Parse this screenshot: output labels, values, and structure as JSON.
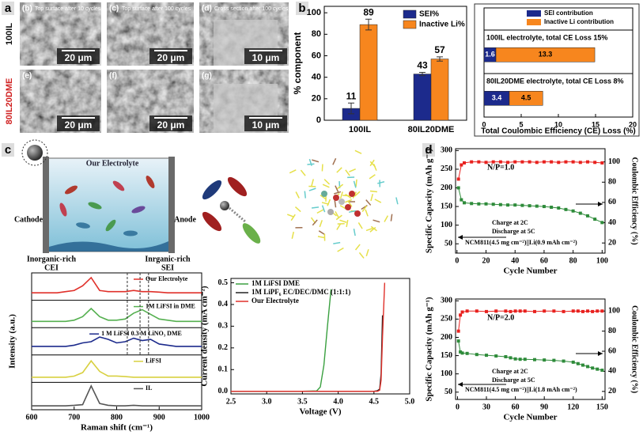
{
  "figure": {
    "panel_labels": [
      "a",
      "b",
      "c",
      "d"
    ],
    "sem": {
      "row_labels": [
        "100IL",
        "80IL20DME"
      ],
      "images": [
        {
          "id": "(b)",
          "caption": "Top surface after 10 cycles",
          "scale": "20 μm"
        },
        {
          "id": "(c)",
          "caption": "Top surface after 100 cycles",
          "scale": "20 μm"
        },
        {
          "id": "(d)",
          "caption": "Cross section after 100 cycles",
          "scale": "10 μm"
        },
        {
          "id": "(e)",
          "scale": "20 μm"
        },
        {
          "id": "(f)",
          "scale": "20 μm"
        },
        {
          "id": "(g)",
          "scale": "10 μm"
        }
      ]
    },
    "schematic": {
      "title": "Our Electrolyte",
      "cathode": "Cathode",
      "anode": "Anode",
      "cei": [
        "Inorganic-rich",
        "CEI"
      ],
      "sei": [
        "Inrganic-rich",
        "SEI"
      ]
    }
  },
  "chart_data": [
    {
      "type": "bar",
      "ylabel": "% component",
      "categories": [
        "100IL",
        "80IL20DME"
      ],
      "series": [
        {
          "name": "SEI%",
          "color": "#1c2a8c",
          "values": [
            11,
            43
          ],
          "errors": [
            5,
            1.5
          ]
        },
        {
          "name": "Inactive Li%",
          "color": "#f7861e",
          "values": [
            89,
            57
          ],
          "errors": [
            5,
            2
          ]
        }
      ],
      "ylim": [
        0,
        106
      ],
      "yticks": [
        0,
        20,
        40,
        60,
        80,
        100
      ],
      "legend": "upper right"
    },
    {
      "type": "barh",
      "stacked": true,
      "xlabel": "Total Coulombic Efficiency (CE) Loss (%)",
      "categories": [
        "100IL electrolyte, total CE Loss 15%",
        "80IL20DME electrolyte, total CE Loss 8%"
      ],
      "series": [
        {
          "name": "SEI contribution",
          "color": "#1c2a8c",
          "values": [
            1.6,
            3.4
          ]
        },
        {
          "name": "Inactive Li contribution",
          "color": "#f7861e",
          "values": [
            13.3,
            4.5
          ]
        }
      ],
      "xlim": [
        0,
        20
      ],
      "xticks": [
        0,
        5,
        10,
        15,
        20
      ],
      "legend": "upper center"
    },
    {
      "type": "spectra",
      "xlabel": "Raman shift (cm⁻¹)",
      "ylabel": "Intensity (a.u.)",
      "x": [
        600,
        620,
        640,
        660,
        680,
        700,
        720,
        740,
        760,
        780,
        800,
        820,
        840,
        860,
        880,
        900,
        920,
        940,
        960,
        980,
        1000
      ],
      "series": [
        {
          "name": "Our Electrolyte",
          "color": "#e0302a",
          "values": [
            0.25,
            0.25,
            0.25,
            0.25,
            0.3,
            0.35,
            0.55,
            0.9,
            0.35,
            0.3,
            0.3,
            0.3,
            0.35,
            0.3,
            0.3,
            0.28,
            0.25,
            0.25,
            0.25,
            0.25,
            0.25
          ]
        },
        {
          "name": "1M LiFSI in DME",
          "color": "#55b050",
          "values": [
            0.2,
            0.2,
            0.2,
            0.2,
            0.2,
            0.25,
            0.4,
            0.75,
            0.4,
            0.25,
            0.25,
            0.3,
            0.55,
            0.7,
            0.5,
            0.3,
            0.25,
            0.2,
            0.2,
            0.2,
            0.2
          ]
        },
        {
          "name": "1 M LiFSI 0.3 M LiNO₃ DME",
          "color": "#1c2a8c",
          "values": [
            0.3,
            0.3,
            0.3,
            0.3,
            0.3,
            0.35,
            0.45,
            0.5,
            0.7,
            0.6,
            0.45,
            0.5,
            0.65,
            0.55,
            0.6,
            0.4,
            0.35,
            0.3,
            0.3,
            0.3,
            0.3
          ]
        },
        {
          "name": "LiFSI",
          "color": "#d8d040",
          "values": [
            0.15,
            0.15,
            0.15,
            0.15,
            0.15,
            0.2,
            0.35,
            0.85,
            0.4,
            0.2,
            0.2,
            0.18,
            0.15,
            0.15,
            0.15,
            0.15,
            0.15,
            0.15,
            0.15,
            0.15,
            0.15
          ]
        },
        {
          "name": "IL",
          "color": "#555555",
          "values": [
            0.1,
            0.1,
            0.1,
            0.1,
            0.1,
            0.12,
            0.15,
            0.95,
            0.2,
            0.12,
            0.1,
            0.1,
            0.12,
            0.1,
            0.1,
            0.1,
            0.1,
            0.1,
            0.1,
            0.1,
            0.1
          ]
        }
      ],
      "xlim": [
        600,
        1000
      ],
      "xticks": [
        600,
        700,
        800,
        900,
        1000
      ],
      "ylim": [
        0,
        1
      ],
      "vlines": [
        825,
        855,
        875
      ]
    },
    {
      "type": "line",
      "xlabel": "Voltage (V)",
      "ylabel": "Current density (mA cm⁻²)",
      "x": [
        2.5,
        3.0,
        3.5,
        3.7,
        3.75,
        3.8,
        3.85,
        3.9,
        3.95,
        4.0,
        4.5,
        4.55,
        4.58,
        4.6,
        4.62,
        4.65,
        4.7,
        5.0
      ],
      "series": [
        {
          "name": "1M LiFSI DME",
          "color": "#3aa040",
          "values": [
            0,
            0,
            0,
            0.002,
            0.02,
            0.12,
            0.3,
            0.47,
            null,
            null,
            null,
            null,
            null,
            null,
            null,
            null,
            null,
            null
          ]
        },
        {
          "name": "1M LiPF₆ EC/DEC/DMC (1:1:1)",
          "color": "#222222",
          "values": [
            0,
            0,
            0,
            0,
            0,
            0,
            0,
            0,
            0,
            0,
            0,
            0.003,
            0.01,
            0.08,
            0.35,
            null,
            null,
            null
          ]
        },
        {
          "name": "Our Electrolyte",
          "color": "#e0302a",
          "values": [
            0,
            0,
            0,
            0,
            0,
            0,
            0,
            0,
            0,
            0,
            0,
            0,
            0.005,
            0.05,
            0.25,
            0.5,
            null,
            null
          ]
        }
      ],
      "xlim": [
        2.5,
        5.0
      ],
      "xticks": [
        2.5,
        {
          "value": 3,
          "label": "3.0"
        },
        3.5,
        {
          "value": 4,
          "label": "4.0"
        },
        4.5,
        {
          "value": 5,
          "label": "5.0"
        }
      ],
      "ylim": [
        -0.012,
        0.52
      ],
      "yticks": [
        {
          "value": 0,
          "label": "0.0"
        },
        0.1,
        0.2,
        0.3,
        0.4,
        0.5
      ],
      "legend": "upper left"
    },
    {
      "type": "line",
      "markers": true,
      "xlabel": "Cycle Number",
      "ylabel": "Specific Capacity (mAh g⁻¹)",
      "y2label": "Coulombic Efficiency (%)",
      "x": [
        1,
        3,
        5,
        10,
        15,
        20,
        25,
        30,
        35,
        40,
        45,
        50,
        55,
        60,
        65,
        70,
        75,
        80,
        85,
        90,
        95,
        100
      ],
      "series": [
        {
          "color": "#2e8b3a",
          "values": [
            200,
            168,
            160,
            158,
            157,
            157,
            156,
            155,
            154,
            154,
            153,
            152,
            151,
            150,
            148,
            146,
            142,
            138,
            132,
            125,
            116,
            107
          ]
        },
        {
          "color": "#e8211e",
          "axis": "y2",
          "values": [
            83,
            97,
            99,
            100,
            100,
            99.5,
            100,
            100,
            99.5,
            100,
            100,
            100,
            99.5,
            100,
            100,
            99.5,
            100,
            100,
            99.5,
            100,
            99.5,
            99
          ]
        }
      ],
      "xlim": [
        -1,
        102
      ],
      "xticks": [
        0,
        20,
        40,
        60,
        80,
        100
      ],
      "ylim": [
        25,
        305
      ],
      "yticks": [
        50,
        100,
        150,
        200,
        250,
        300
      ],
      "y2lim": [
        10,
        113
      ],
      "y2ticks": [
        20,
        40,
        60,
        80,
        100
      ],
      "annotations": [
        "N/P=1.0",
        "Charge at 2C",
        "Discharge at 5C",
        "NCM811(4.5 mg cm⁻²)||Li(0.9 mAh cm⁻²)"
      ]
    },
    {
      "type": "line",
      "markers": true,
      "xlabel": "Cycle Number",
      "ylabel": "Specific Capacity (mAh g⁻¹)",
      "y2label": "Coulombic Efficiency (%)",
      "x": [
        1,
        3,
        5,
        10,
        20,
        30,
        40,
        50,
        55,
        60,
        65,
        70,
        80,
        90,
        100,
        110,
        120,
        125,
        130,
        135,
        140,
        145,
        150
      ],
      "series": [
        {
          "color": "#2e8b3a",
          "values": [
            190,
            160,
            157,
            156,
            153,
            151,
            149,
            147,
            144,
            141,
            140,
            140,
            139,
            138,
            137,
            135,
            132,
            128,
            124,
            120,
            116,
            113,
            110
          ]
        },
        {
          "color": "#e8211e",
          "axis": "y2",
          "values": [
            80,
            96,
            99,
            100,
            100,
            99.5,
            100,
            100,
            99.5,
            100,
            100,
            100,
            99.5,
            100,
            100,
            99.5,
            100,
            100,
            99.5,
            100,
            99.5,
            100,
            100
          ]
        }
      ],
      "xlim": [
        -2,
        153
      ],
      "xticks": [
        0,
        30,
        60,
        90,
        120,
        150
      ],
      "ylim": [
        30,
        305
      ],
      "yticks": [
        50,
        100,
        150,
        200,
        250,
        300
      ],
      "y2lim": [
        12,
        112
      ],
      "y2ticks": [
        20,
        40,
        60,
        80,
        100
      ],
      "annotations": [
        "N/P=2.0",
        "Charge at 2C",
        "Discharge at 5C",
        "NCM811(4.5 mg cm⁻²)||Li(1.8 mAh cm⁻²)"
      ]
    }
  ]
}
